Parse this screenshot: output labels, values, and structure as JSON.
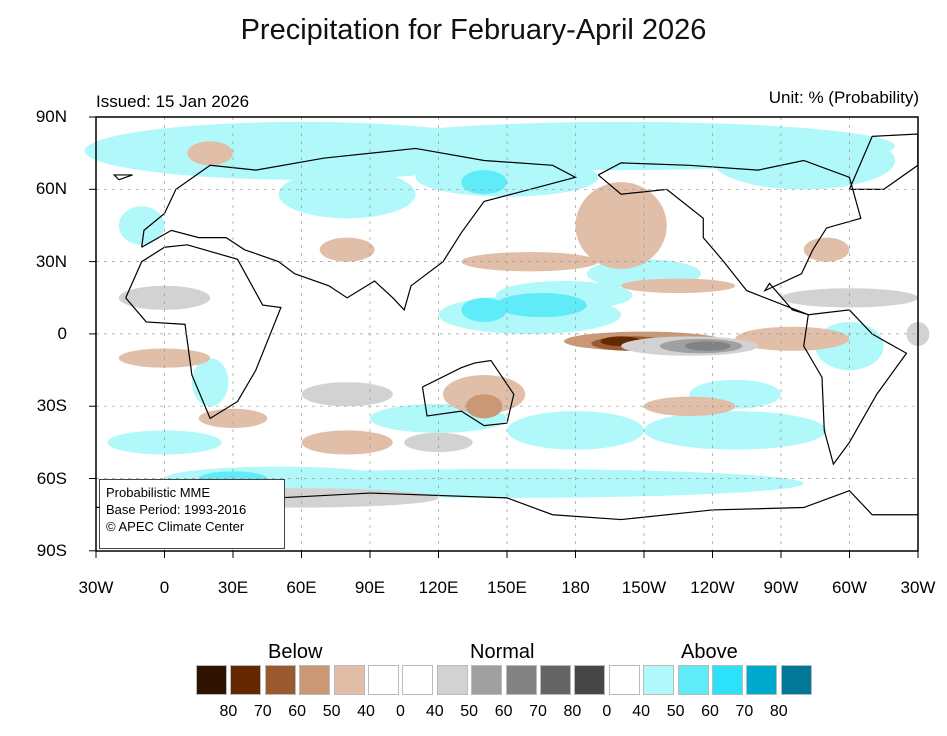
{
  "title": "Precipitation for February-April 2026",
  "issued": "Issued: 15 Jan 2026",
  "unit": "Unit: % (Probability)",
  "y_ticks": [
    "90N",
    "60N",
    "30N",
    "0",
    "30S",
    "60S",
    "90S"
  ],
  "x_ticks": [
    "30W",
    "0",
    "30E",
    "60E",
    "90E",
    "120E",
    "150E",
    "180",
    "150W",
    "120W",
    "90W",
    "60W",
    "30W"
  ],
  "info": [
    "Probabilistic MME",
    "Base Period: 1993-2016",
    "© APEC Climate Center"
  ],
  "legend": {
    "categories": [
      "Below",
      "Normal",
      "Above"
    ],
    "colors": [
      "#2e1400",
      "#642800",
      "#985a2e",
      "#cb9876",
      "#e1bea8",
      "#ffffff",
      "#ffffff",
      "#d2d2d2",
      "#a0a0a0",
      "#828282",
      "#646464",
      "#464646",
      "#ffffff",
      "#b0f8fa",
      "#5fecf8",
      "#2ce2fa",
      "#00aacc",
      "#007896"
    ],
    "labels": [
      "80",
      "70",
      "60",
      "50",
      "40",
      "0",
      "40",
      "50",
      "60",
      "70",
      "80",
      "0",
      "40",
      "50",
      "60",
      "70",
      "80"
    ]
  }
}
